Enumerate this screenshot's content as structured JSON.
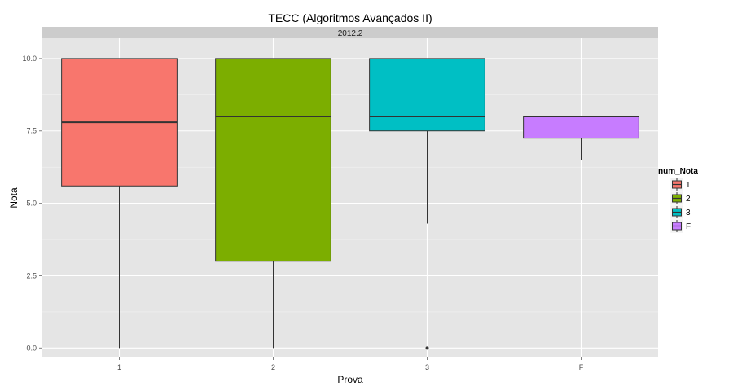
{
  "chart_data": {
    "type": "box",
    "title": "TECC (Algoritmos Avançados II)",
    "facet_label": "2012.2",
    "xlabel": "Prova",
    "ylabel": "Nota",
    "categories": [
      "1",
      "2",
      "3",
      "F"
    ],
    "ylim": [
      -0.3,
      10.7
    ],
    "yticks": [
      0.0,
      2.5,
      5.0,
      7.5,
      10.0
    ],
    "ytick_labels": [
      "0.0",
      "2.5",
      "5.0",
      "7.5",
      "10.0"
    ],
    "grid": true,
    "legend": {
      "title": "num_Nota",
      "position": "right",
      "entries": [
        "1",
        "2",
        "3",
        "F"
      ]
    },
    "series": [
      {
        "category": "1",
        "color": "#F8766D",
        "min": 0.0,
        "q1": 5.6,
        "median": 7.8,
        "q3": 10.0,
        "max": 10.0,
        "outliers": []
      },
      {
        "category": "2",
        "color": "#7CAE00",
        "min": 0.0,
        "q1": 3.0,
        "median": 8.0,
        "q3": 10.0,
        "max": 10.0,
        "outliers": []
      },
      {
        "category": "3",
        "color": "#00BFC4",
        "min": 4.3,
        "q1": 7.5,
        "median": 8.0,
        "q3": 10.0,
        "max": 10.0,
        "outliers": [
          0.0
        ]
      },
      {
        "category": "F",
        "color": "#C77CFF",
        "min": 6.5,
        "q1": 7.25,
        "median": 8.0,
        "q3": 8.0,
        "max": 8.0,
        "outliers": []
      }
    ]
  }
}
